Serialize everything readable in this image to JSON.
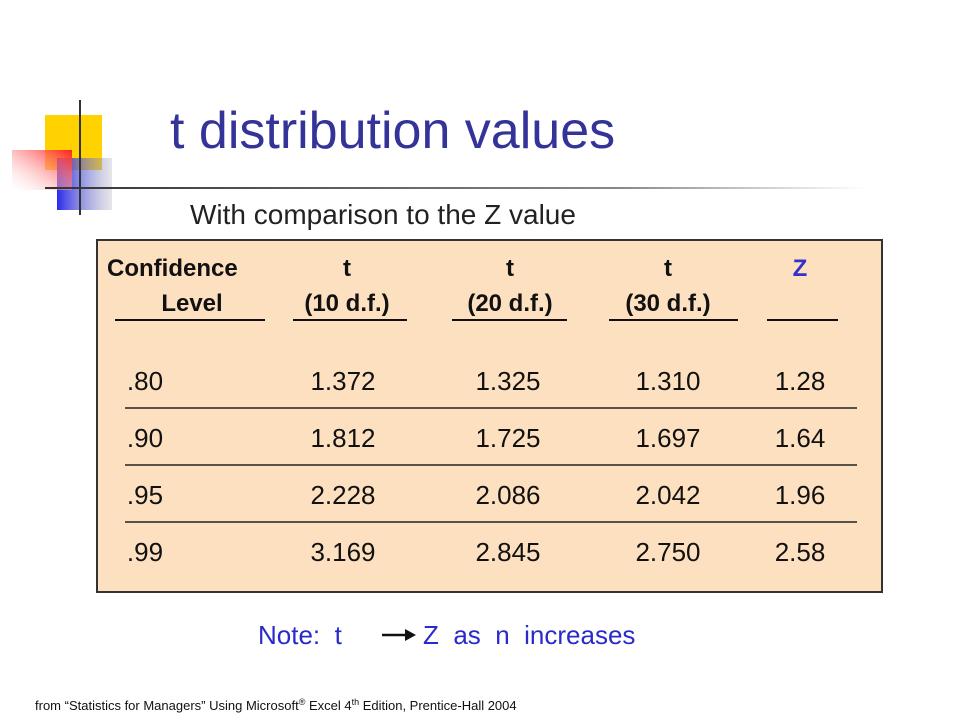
{
  "title": "t distribution values",
  "subtitle": "With comparison to the Z value",
  "table": {
    "header": [
      [
        "Confidence",
        "t",
        "t",
        "t",
        "Z"
      ],
      [
        "Level",
        "(10 d.f.)",
        "(20 d.f.)",
        "(30 d.f.)"
      ]
    ],
    "rows": [
      [
        ".80",
        "1.372",
        "1.325",
        "1.310",
        "1.28"
      ],
      [
        ".90",
        "1.812",
        "1.725",
        "1.697",
        "1.64"
      ],
      [
        ".95",
        "2.228",
        "2.086",
        "2.042",
        "1.96"
      ],
      [
        ".99",
        "3.169",
        "2.845",
        "2.750",
        "2.58"
      ]
    ]
  },
  "note": {
    "before": "Note:  t",
    "after": "Z  as  n  increases"
  },
  "footer": {
    "parts": [
      "from “Statistics for Managers” Using Microsoft",
      "®",
      " Excel 4",
      "th",
      " Edition, Prentice-Hall 2004"
    ]
  }
}
